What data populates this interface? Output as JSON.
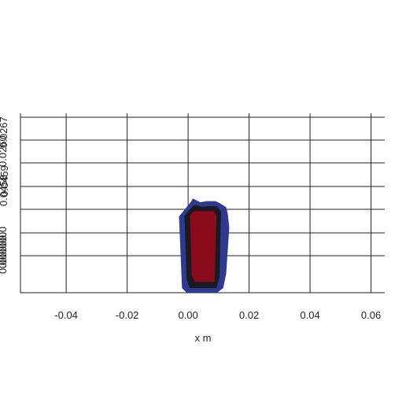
{
  "chart_data": {
    "type": "contour",
    "xlabel": "x m",
    "ylabel": "",
    "xlim": [
      -0.055,
      0.0645
    ],
    "ylim": [
      0.0,
      0.0458
    ],
    "x_ticks": [
      "-0.04",
      "-0.02",
      "0.00",
      "0.02",
      "0.04",
      "0.06"
    ],
    "y_ticks_overlapping": [
      "0.0",
      "0.0",
      "0.0",
      "0.0",
      "0.0",
      "0.0",
      "0.0"
    ],
    "y_top_tick_labels": [
      "0.0458",
      "0.0459",
      "0.0260",
      "0.0267"
    ],
    "grid": true,
    "regions": [
      {
        "level": "outer",
        "color": "#2f3a8f",
        "x": [
          -0.003,
          0.001,
          0.0015,
          0.004,
          0.006,
          0.009,
          0.0105,
          0.0125,
          0.013,
          0.0135,
          0.0125,
          0.0115,
          0.0095,
          -0.0005,
          -0.002,
          -0.003
        ],
        "y": [
          0.0198,
          0.0237,
          0.0245,
          0.0235,
          0.0238,
          0.0238,
          0.0232,
          0.0222,
          0.0205,
          0.017,
          0.005,
          0.0012,
          0.0,
          0.0,
          0.0012,
          0.0198
        ]
      },
      {
        "level": "middle",
        "color": "#1a1a22",
        "x": [
          -0.0012,
          0.0015,
          0.0025,
          0.0045,
          0.0068,
          0.0095,
          0.0108,
          0.0103,
          0.0093,
          0.0005,
          -0.0005,
          -0.0012
        ],
        "y": [
          0.02,
          0.0225,
          0.0228,
          0.0223,
          0.0225,
          0.0225,
          0.021,
          0.004,
          0.0012,
          0.0012,
          0.0035,
          0.02
        ]
      },
      {
        "level": "inner",
        "color": "#8b0a1c",
        "x": [
          0.0006,
          0.002,
          0.0085,
          0.0093,
          0.0087,
          0.0022,
          0.0012,
          0.0006
        ],
        "y": [
          0.0202,
          0.0212,
          0.0212,
          0.02,
          0.0028,
          0.0028,
          0.0045,
          0.0202
        ]
      }
    ]
  }
}
